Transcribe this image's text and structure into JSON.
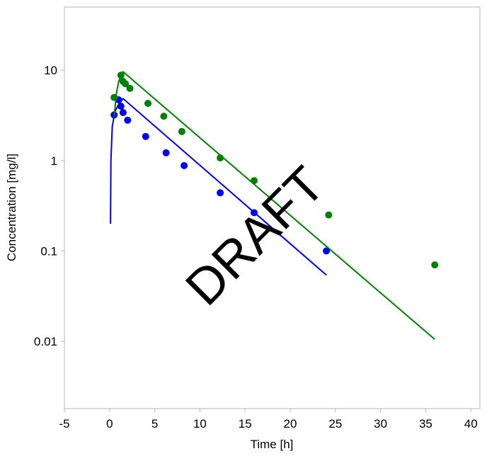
{
  "chart_data": {
    "type": "scatter",
    "xlabel": "Time [h]",
    "ylabel": "Concentration [mg/l]",
    "xlim": [
      -5,
      41
    ],
    "ylim": [
      0.0018,
      50
    ],
    "yscale": "log",
    "grid": false,
    "x_ticks": [
      -5,
      0,
      5,
      10,
      15,
      20,
      25,
      30,
      35,
      40
    ],
    "x_tick_labels": [
      "-5",
      "0",
      "5",
      "10",
      "15",
      "20",
      "25",
      "30",
      "35",
      "40"
    ],
    "y_ticks": [
      0.01,
      0.1,
      1,
      10
    ],
    "y_tick_labels": [
      "0.01",
      "0.1",
      "1",
      "10"
    ],
    "series": [
      {
        "color": "#0000ee",
        "points": [
          [
            0.5,
            3.2
          ],
          [
            1.0,
            4.7
          ],
          [
            1.25,
            4.0
          ],
          [
            1.5,
            3.4
          ],
          [
            2.0,
            2.8
          ],
          [
            4.0,
            1.85
          ],
          [
            6.25,
            1.22
          ],
          [
            8.25,
            0.88
          ],
          [
            12.25,
            0.44
          ],
          [
            16.0,
            0.265
          ],
          [
            24.0,
            0.1
          ]
        ],
        "line": [
          [
            0.1,
            0.2
          ],
          [
            0.15,
            1.0
          ],
          [
            0.3,
            2.4
          ],
          [
            0.6,
            3.5
          ],
          [
            1.0,
            4.2
          ],
          [
            1.5,
            4.85
          ],
          [
            24.0,
            0.054
          ]
        ]
      },
      {
        "color": "#008000",
        "points": [
          [
            0.5,
            5.0
          ],
          [
            1.25,
            8.8
          ],
          [
            1.5,
            7.5
          ],
          [
            1.75,
            7.1
          ],
          [
            2.25,
            6.3
          ],
          [
            4.25,
            4.3
          ],
          [
            6.0,
            3.1
          ],
          [
            8.0,
            2.1
          ],
          [
            12.25,
            1.07
          ],
          [
            16.0,
            0.6
          ],
          [
            24.25,
            0.25
          ],
          [
            36.0,
            0.07
          ]
        ],
        "line": [
          [
            0.5,
            3.0
          ],
          [
            0.75,
            5.5
          ],
          [
            1.0,
            7.5
          ],
          [
            1.25,
            8.7
          ],
          [
            1.5,
            9.6
          ],
          [
            36.0,
            0.0105
          ]
        ]
      }
    ],
    "watermark": "DRAFT"
  }
}
